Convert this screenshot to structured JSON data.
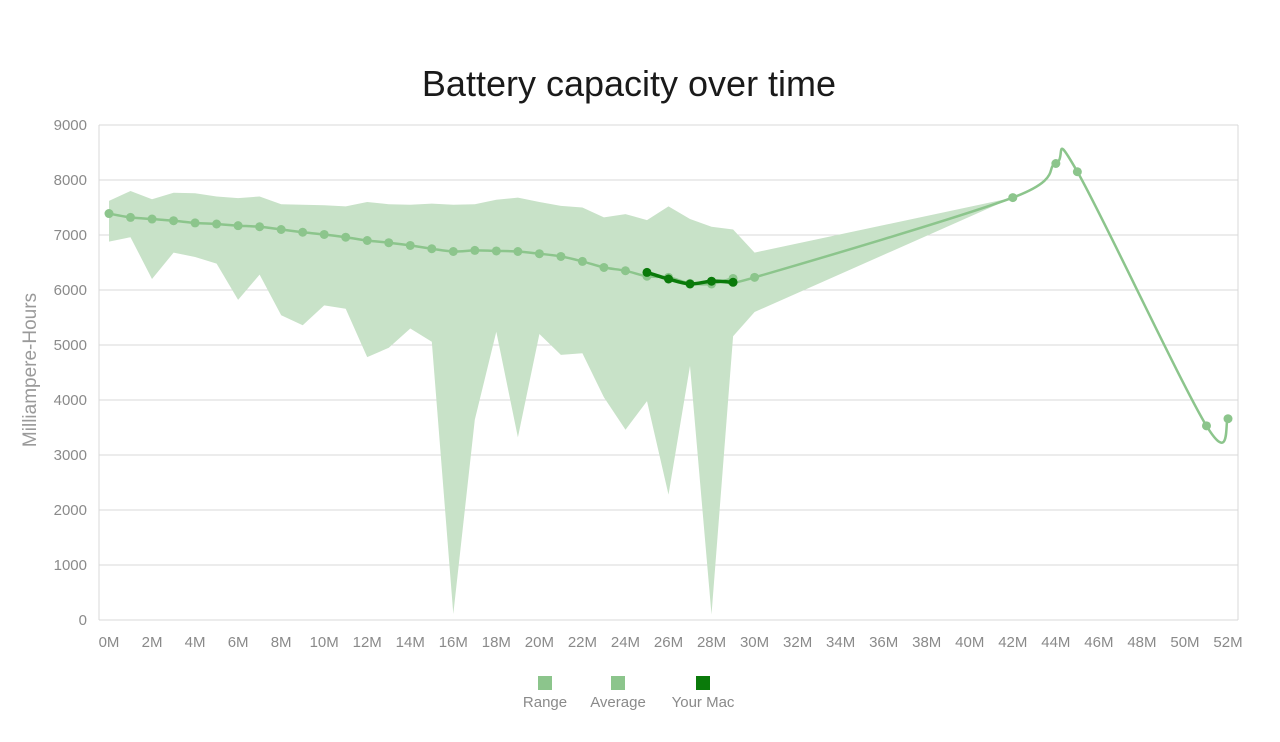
{
  "chart_data": {
    "type": "line",
    "title": "Battery capacity over time",
    "xlabel": "",
    "ylabel": "Milliampere-Hours",
    "x_ticks": [
      "0M",
      "2M",
      "4M",
      "6M",
      "8M",
      "10M",
      "12M",
      "14M",
      "16M",
      "18M",
      "20M",
      "22M",
      "24M",
      "26M",
      "28M",
      "30M",
      "32M",
      "34M",
      "36M",
      "38M",
      "40M",
      "42M",
      "44M",
      "46M",
      "48M",
      "50M",
      "52M"
    ],
    "xlim": [
      0,
      52
    ],
    "ylim": [
      0,
      9000
    ],
    "y_ticks": [
      0,
      1000,
      2000,
      3000,
      4000,
      5000,
      6000,
      7000,
      8000,
      9000
    ],
    "grid": true,
    "legend_position": "bottom",
    "colors": {
      "range": "#c8e2c8",
      "average": "#8cc58c",
      "your_mac": "#0a7a0a",
      "grid": "#d9d9d9"
    },
    "series": [
      {
        "name": "Range",
        "kind": "band",
        "x": [
          0,
          1,
          2,
          3,
          4,
          5,
          6,
          7,
          8,
          9,
          10,
          11,
          12,
          13,
          14,
          15,
          16,
          17,
          18,
          19,
          20,
          21,
          22,
          23,
          24,
          25,
          26,
          27,
          28,
          29,
          30,
          42
        ],
        "high": [
          7620,
          7800,
          7650,
          7770,
          7760,
          7700,
          7670,
          7700,
          7560,
          7550,
          7540,
          7520,
          7600,
          7560,
          7550,
          7570,
          7550,
          7560,
          7640,
          7680,
          7600,
          7530,
          7500,
          7320,
          7380,
          7270,
          7520,
          7290,
          7150,
          7100,
          6680,
          7680
        ],
        "low": [
          6880,
          6960,
          6200,
          6680,
          6600,
          6480,
          5820,
          6280,
          5540,
          5360,
          5720,
          5660,
          4780,
          4950,
          5300,
          5060,
          110,
          3640,
          5240,
          3320,
          5200,
          4820,
          4850,
          4050,
          3460,
          3980,
          2280,
          4620,
          100,
          5160,
          5600,
          7680
        ]
      },
      {
        "name": "Average",
        "kind": "line",
        "x": [
          0,
          1,
          2,
          3,
          4,
          5,
          6,
          7,
          8,
          9,
          10,
          11,
          12,
          13,
          14,
          15,
          16,
          17,
          18,
          19,
          20,
          21,
          22,
          23,
          24,
          25,
          26,
          27,
          28,
          29,
          30,
          42,
          44,
          45,
          51,
          52
        ],
        "y": [
          7390,
          7320,
          7290,
          7260,
          7220,
          7200,
          7170,
          7150,
          7100,
          7050,
          7010,
          6960,
          6900,
          6860,
          6810,
          6750,
          6700,
          6720,
          6710,
          6700,
          6660,
          6610,
          6520,
          6410,
          6350,
          6250,
          6230,
          6120,
          6110,
          6210,
          6230,
          7680,
          8300,
          8150,
          3530,
          3660
        ]
      },
      {
        "name": "Your Mac",
        "kind": "line",
        "x": [
          25,
          26,
          27,
          28,
          29
        ],
        "y": [
          6320,
          6200,
          6110,
          6160,
          6140
        ]
      }
    ]
  },
  "legend": [
    {
      "label": "Range",
      "color": "#8cc58c"
    },
    {
      "label": "Average",
      "color": "#8cc58c"
    },
    {
      "label": "Your Mac",
      "color": "#0a7a0a"
    }
  ]
}
